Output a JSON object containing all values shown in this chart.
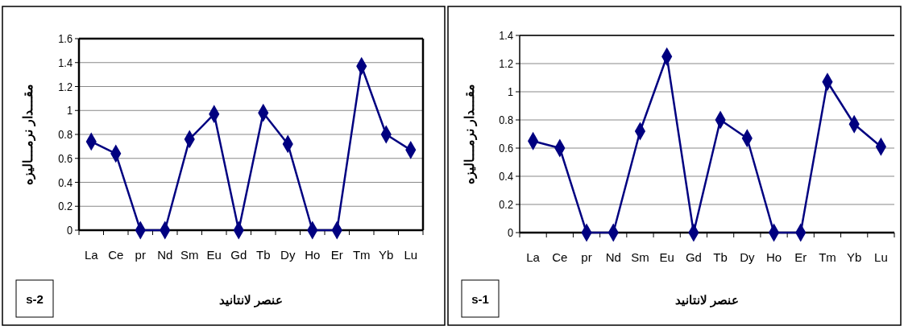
{
  "chart_data": [
    {
      "type": "line",
      "xlabel": "عنصر لانتانید",
      "ylabel": "مقـــدار نرمـــالیزه",
      "annotations": [
        "s-2"
      ],
      "categories": [
        "La",
        "Ce",
        "pr",
        "Nd",
        "Sm",
        "Eu",
        "Gd",
        "Tb",
        "Dy",
        "Ho",
        "Er",
        "Tm",
        "Yb",
        "Lu"
      ],
      "series": [
        {
          "color": "#000080",
          "values": [
            0.74,
            0.64,
            0,
            0,
            0.76,
            0.97,
            0,
            0.98,
            0.72,
            0,
            0,
            1.37,
            0.8,
            0.67
          ]
        }
      ],
      "ylim": [
        0,
        1.6
      ],
      "yticks": [
        0,
        0.2,
        0.4,
        0.6,
        0.8,
        1,
        1.2,
        1.4,
        1.6
      ],
      "grid": "y",
      "marker": "diamond",
      "line_style": "solid"
    },
    {
      "type": "line",
      "xlabel": "عنصر لانتانید",
      "ylabel": "مقـــدار نرمـــالیزه",
      "annotations": [
        "s-1"
      ],
      "categories": [
        "La",
        "Ce",
        "pr",
        "Nd",
        "Sm",
        "Eu",
        "Gd",
        "Tb",
        "Dy",
        "Ho",
        "Er",
        "Tm",
        "Yb",
        "Lu"
      ],
      "series": [
        {
          "color": "#000080",
          "values": [
            0.65,
            0.6,
            0,
            0,
            0.72,
            1.25,
            0,
            0.8,
            0.67,
            0,
            0,
            1.07,
            0.77,
            0.61
          ]
        }
      ],
      "ylim": [
        0,
        1.4
      ],
      "yticks": [
        0,
        0.2,
        0.4,
        0.6,
        0.8,
        1,
        1.2,
        1.4
      ],
      "grid": "y",
      "marker": "diamond",
      "line_style": "solid"
    }
  ]
}
